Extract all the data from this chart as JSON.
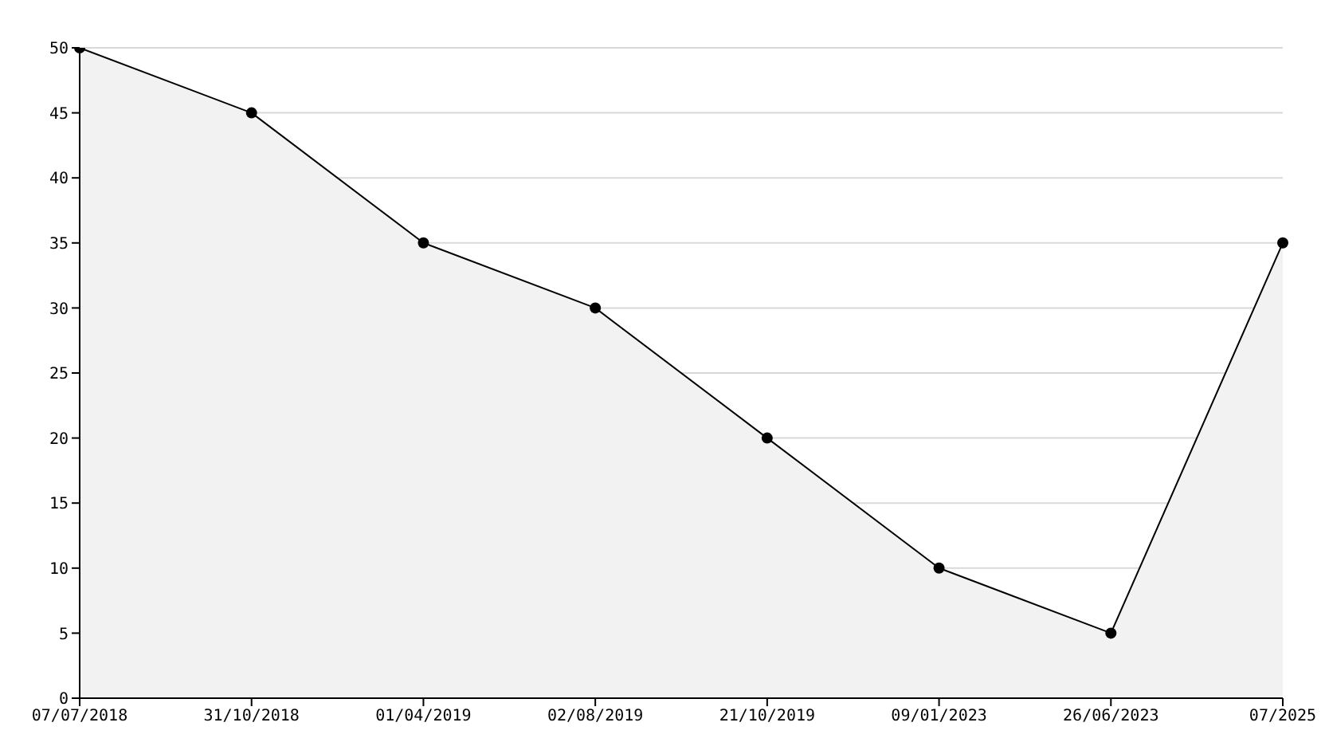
{
  "chart_data": {
    "type": "area",
    "categories": [
      "07/07/2018",
      "31/10/2018",
      "01/04/2019",
      "02/08/2019",
      "21/10/2019",
      "09/01/2023",
      "26/06/2023",
      "07/2025"
    ],
    "series": [
      {
        "color": "#000000",
        "values": [
          50,
          45,
          35,
          30,
          20,
          10,
          5,
          35
        ]
      }
    ],
    "ylim": [
      0,
      50
    ],
    "yticks": [
      0,
      5,
      10,
      15,
      20,
      25,
      30,
      35,
      40,
      45,
      50
    ],
    "grid": "y",
    "marker": "circle",
    "line_style": "solid",
    "legend": false
  }
}
